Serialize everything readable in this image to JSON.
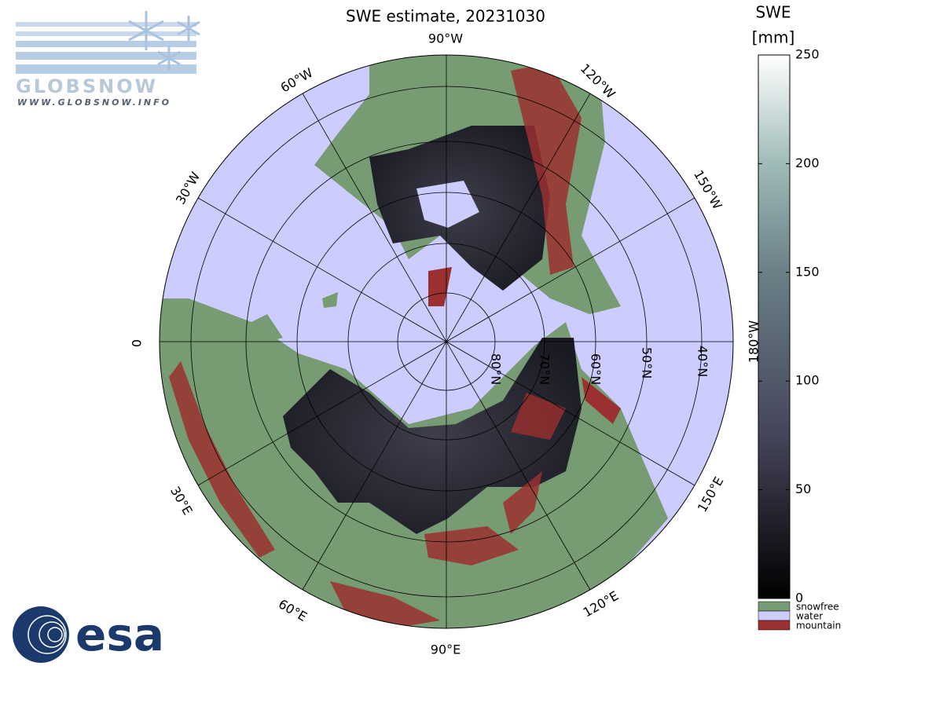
{
  "title": "SWE estimate, 20231030",
  "colorbar": {
    "label": "SWE",
    "unit": "[mm]",
    "lim": [
      0,
      250
    ],
    "ticks": [
      0,
      50,
      100,
      150,
      200,
      250
    ]
  },
  "legend": [
    {
      "label": "snowfree",
      "color": "#779b72"
    },
    {
      "label": "water",
      "color": "#ccccff"
    },
    {
      "label": "mountain",
      "color": "#9b3030"
    }
  ],
  "meridian_labels": [
    "90°W",
    "120°W",
    "150°W",
    "180°W",
    "150°E",
    "120°E",
    "90°E",
    "60°E",
    "30°E",
    "0",
    "30°W",
    "60°W"
  ],
  "parallel_labels": [
    "80°N",
    "70°N",
    "60°N",
    "50°N",
    "40°N"
  ],
  "logos": {
    "globsnow": "GLOBSNOW",
    "globsnow_url": "WWW.GLOBSNOW.INFO",
    "esa": "esa"
  }
}
